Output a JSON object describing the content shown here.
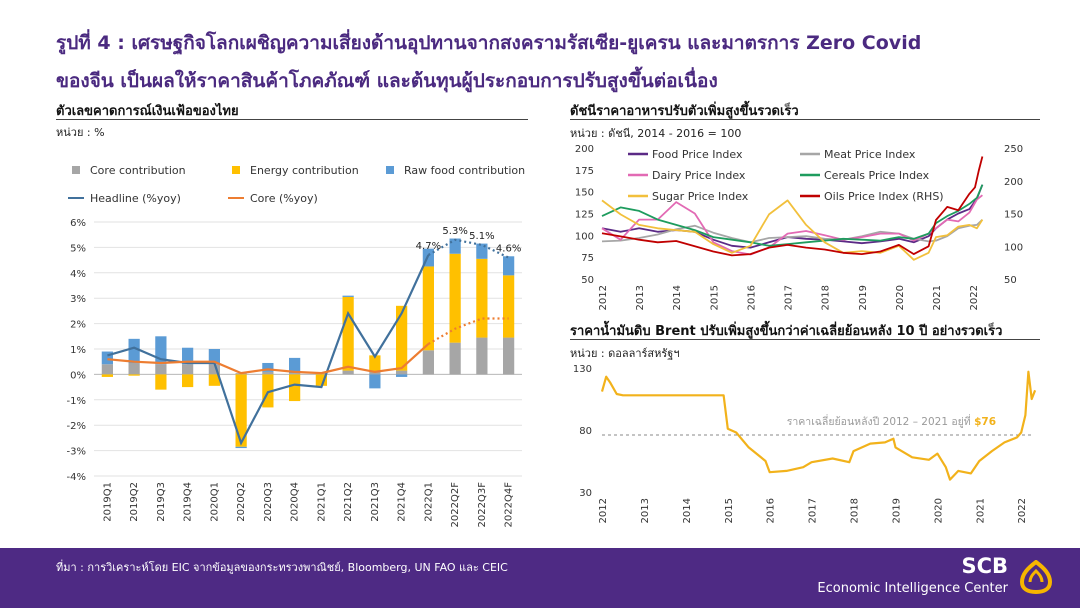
{
  "page": {
    "title_line1": "รูปที่ 4 : เศรษฐกิจโลกเผชิญความเสี่ยงด้านอุปทานจากสงครามรัสเซีย-ยูเครน และมาตรการ Zero Covid",
    "title_line2": "ของจีน เป็นผลให้ราคาสินค้าโภคภัณฑ์ และต้นทุนผู้ประกอบการปรับสูงขึ้นต่อเนื่อง"
  },
  "footer": {
    "source": "ที่มา : การวิเคราะห์โดย EIC จากข้อมูลของกระทรวงพาณิชย์, Bloomberg, UN FAO และ CEIC",
    "brand": "SCB",
    "brand_sub": "Economic Intelligence Center"
  },
  "chart_data": [
    {
      "type": "bar",
      "title": "ตัวเลขคาดการณ์เงินเฟ้อของไทย",
      "unit": "หน่วย : %",
      "categories": [
        "2019Q1",
        "2019Q2",
        "2019Q3",
        "2019Q4",
        "2020Q1",
        "2020Q2",
        "2020Q3",
        "2020Q4",
        "2021Q1",
        "2021Q2",
        "2021Q3",
        "2021Q4",
        "2022Q1",
        "2022Q2F",
        "2022Q3F",
        "2022Q4F"
      ],
      "ylim": [
        -4,
        6
      ],
      "yticks": [
        "-4%",
        "-3%",
        "-2%",
        "-1%",
        "0%",
        "1%",
        "2%",
        "3%",
        "4%",
        "5%",
        "6%"
      ],
      "series": [
        {
          "name": "Core contribution",
          "kind": "bar",
          "color": "#a6a6a6",
          "values": [
            0.4,
            0.45,
            0.4,
            0.4,
            0.4,
            0.05,
            0.1,
            0.05,
            0.05,
            0.15,
            0.1,
            0.15,
            0.95,
            1.25,
            1.45,
            1.45
          ]
        },
        {
          "name": "Energy contribution",
          "kind": "bar",
          "color": "#ffc000",
          "values": [
            -0.1,
            -0.05,
            -0.6,
            -0.5,
            -0.45,
            -2.85,
            -1.3,
            -1.05,
            -0.45,
            2.9,
            0.65,
            2.55,
            3.3,
            3.5,
            3.1,
            2.45
          ]
        },
        {
          "name": "Raw food contribution",
          "kind": "bar",
          "color": "#5b9bd5",
          "values": [
            0.5,
            0.95,
            1.1,
            0.65,
            0.6,
            -0.05,
            0.35,
            0.6,
            0.0,
            0.05,
            -0.55,
            -0.1,
            0.7,
            0.6,
            0.6,
            0.75
          ]
        },
        {
          "name": "Headline  (%yoy)",
          "kind": "line",
          "color": "#41719c",
          "values": [
            0.75,
            1.05,
            0.6,
            0.45,
            0.45,
            -2.7,
            -0.7,
            -0.4,
            -0.5,
            2.4,
            0.7,
            2.4,
            4.7,
            5.3,
            5.1,
            4.6
          ]
        },
        {
          "name": "Core (%yoy)",
          "kind": "line",
          "color": "#ed7d31",
          "values": [
            0.6,
            0.5,
            0.45,
            0.5,
            0.5,
            0.05,
            0.2,
            0.1,
            0.05,
            0.3,
            0.1,
            0.25,
            1.2,
            1.8,
            2.2,
            2.2
          ]
        }
      ],
      "data_labels": [
        {
          "category": "2022Q1",
          "text": "4.7%"
        },
        {
          "category": "2022Q2F",
          "text": "5.3%"
        },
        {
          "category": "2022Q3F",
          "text": "5.1%"
        },
        {
          "category": "2022Q4F",
          "text": "4.6%"
        }
      ],
      "forecast_from": "2022Q1",
      "legend": "top"
    },
    {
      "type": "line",
      "title": "ดัชนีราคาอาหารปรับตัวเพิ่มสูงขึ้นรวดเร็ว",
      "unit": "หน่วย : ดัชนี, 2014 - 2016 = 100",
      "xlim": [
        2012,
        2022.4
      ],
      "xticks": [
        "2012",
        "2013",
        "2014",
        "2015",
        "2016",
        "2017",
        "2018",
        "2019",
        "2020",
        "2021",
        "2022"
      ],
      "ylim_left": [
        50,
        200
      ],
      "yticks_left": [
        "50",
        "75",
        "100",
        "125",
        "150",
        "175",
        "200"
      ],
      "ylim_right": [
        50,
        250
      ],
      "yticks_right": [
        "50",
        "100",
        "150",
        "200",
        "250"
      ],
      "legend": "top",
      "series": [
        {
          "name": "Food Price Index",
          "color": "#5b2a86",
          "axis": "left",
          "x": [
            2012,
            2012.5,
            2013,
            2013.5,
            2014,
            2014.5,
            2015,
            2015.5,
            2016,
            2016.5,
            2017,
            2017.5,
            2018,
            2018.5,
            2019,
            2019.5,
            2020,
            2020.4,
            2020.8,
            2021,
            2021.3,
            2021.6,
            2021.9,
            2022.1,
            2022.25
          ],
          "y": [
            108,
            104,
            108,
            104,
            106,
            104,
            95,
            88,
            86,
            92,
            98,
            96,
            95,
            93,
            91,
            93,
            96,
            92,
            99,
            108,
            118,
            125,
            130,
            142,
            158
          ]
        },
        {
          "name": "Meat Price Index",
          "color": "#a6a6a6",
          "axis": "left",
          "x": [
            2012,
            2012.5,
            2013,
            2013.5,
            2014,
            2014.5,
            2015,
            2015.5,
            2016,
            2016.5,
            2017,
            2017.5,
            2018,
            2018.5,
            2019,
            2019.5,
            2020,
            2020.4,
            2020.8,
            2021,
            2021.3,
            2021.6,
            2021.9,
            2022.1,
            2022.25
          ],
          "y": [
            93,
            94,
            97,
            101,
            107,
            111,
            103,
            97,
            92,
            97,
            98,
            99,
            96,
            95,
            99,
            104,
            102,
            96,
            93,
            94,
            99,
            108,
            111,
            112,
            118
          ]
        },
        {
          "name": "Dairy Price Index",
          "color": "#e26ab4",
          "axis": "left",
          "x": [
            2012,
            2012.5,
            2013,
            2013.5,
            2014,
            2014.5,
            2015,
            2015.5,
            2016,
            2016.5,
            2017,
            2017.5,
            2018,
            2018.5,
            2019,
            2019.5,
            2020,
            2020.4,
            2020.8,
            2021,
            2021.3,
            2021.6,
            2021.9,
            2022.1,
            2022.25
          ],
          "y": [
            108,
            95,
            118,
            118,
            138,
            125,
            92,
            82,
            78,
            86,
            102,
            105,
            100,
            95,
            98,
            102,
            102,
            94,
            102,
            108,
            118,
            116,
            126,
            141,
            146
          ]
        },
        {
          "name": "Cereals Price Index",
          "color": "#1e9c5e",
          "axis": "left",
          "x": [
            2012,
            2012.5,
            2013,
            2013.5,
            2014,
            2014.5,
            2015,
            2015.5,
            2016,
            2016.5,
            2017,
            2017.5,
            2018,
            2018.5,
            2019,
            2019.5,
            2020,
            2020.4,
            2020.8,
            2021,
            2021.3,
            2021.6,
            2021.9,
            2022.1,
            2022.25
          ],
          "y": [
            122,
            132,
            128,
            118,
            112,
            106,
            98,
            95,
            92,
            88,
            90,
            92,
            94,
            96,
            95,
            94,
            98,
            96,
            102,
            114,
            122,
            128,
            136,
            143,
            158
          ]
        },
        {
          "name": "Sugar Price Index",
          "color": "#f2c03c",
          "axis": "left",
          "x": [
            2012,
            2012.5,
            2013,
            2013.5,
            2014,
            2014.5,
            2015,
            2015.5,
            2016,
            2016.5,
            2017,
            2017.5,
            2018,
            2018.5,
            2019,
            2019.5,
            2020,
            2020.4,
            2020.8,
            2021,
            2021.3,
            2021.6,
            2021.9,
            2022.1,
            2022.25
          ],
          "y": [
            140,
            124,
            112,
            108,
            106,
            104,
            90,
            80,
            88,
            124,
            140,
            112,
            92,
            80,
            82,
            80,
            88,
            72,
            80,
            98,
            100,
            110,
            112,
            108,
            118
          ]
        },
        {
          "name": "Oils Price Index (RHS)",
          "color": "#c00000",
          "axis": "right",
          "x": [
            2012,
            2012.5,
            2013,
            2013.5,
            2014,
            2014.5,
            2015,
            2015.5,
            2016,
            2016.5,
            2017,
            2017.5,
            2018,
            2018.5,
            2019,
            2019.5,
            2020,
            2020.4,
            2020.8,
            2021,
            2021.3,
            2021.6,
            2021.9,
            2022.05,
            2022.15,
            2022.25
          ],
          "y": [
            120,
            115,
            110,
            106,
            108,
            100,
            92,
            86,
            88,
            98,
            102,
            98,
            95,
            90,
            88,
            92,
            102,
            88,
            100,
            140,
            160,
            155,
            180,
            190,
            215,
            237
          ]
        }
      ]
    },
    {
      "type": "line",
      "title": "ราคาน้ำมันดิบ Brent ปรับเพิ่มสูงขึ้นกว่าค่าเฉลี่ยย้อนหลัง 10 ปี อย่างรวดเร็ว",
      "unit": "หน่วย : ดอลลาร์สหรัฐฯ",
      "xlim": [
        2012,
        2022.4
      ],
      "xticks": [
        "2012",
        "2013",
        "2014",
        "2015",
        "2016",
        "2017",
        "2018",
        "2019",
        "2020",
        "2021",
        "2022"
      ],
      "ylim": [
        30,
        130
      ],
      "yticks": [
        "30",
        "80",
        "130"
      ],
      "average_label": "ราคาเฉลี่ยย้อนหลังปี 2012 – 2021 อยู่ที่",
      "average_value_label": "$76",
      "average_value": 76,
      "series": [
        {
          "name": "Brent",
          "color": "#f2b21b",
          "x": [
            2012,
            2012.1,
            2012.2,
            2012.35,
            2012.5,
            2013,
            2014,
            2014.9,
            2015,
            2015.2,
            2015.5,
            2015.9,
            2016,
            2016.4,
            2016.8,
            2017,
            2017.5,
            2017.9,
            2018,
            2018.4,
            2018.75,
            2018.95,
            2019,
            2019.4,
            2019.8,
            2020,
            2020.2,
            2020.3,
            2020.5,
            2020.8,
            2021,
            2021.3,
            2021.6,
            2021.9,
            2022,
            2022.1,
            2022.17,
            2022.25,
            2022.33
          ],
          "y": [
            111,
            123,
            118,
            109,
            108,
            108,
            108,
            108,
            81,
            78,
            66,
            55,
            46,
            47,
            50,
            54,
            57,
            54,
            63,
            69,
            70,
            73,
            66,
            58,
            56,
            61,
            50,
            40,
            47,
            45,
            55,
            63,
            70,
            74,
            78,
            92,
            127,
            105,
            112
          ]
        }
      ]
    }
  ]
}
